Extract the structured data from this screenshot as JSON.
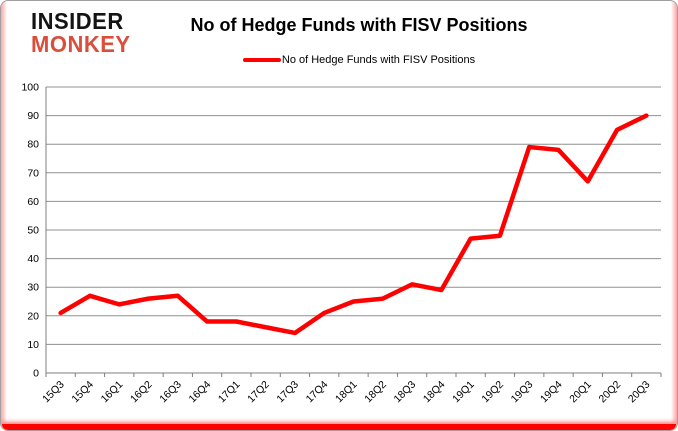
{
  "branding": {
    "logo_line1": "INSIDER",
    "logo_line2": "MONKEY",
    "logo_color_primary": "#141414",
    "logo_color_secondary": "#d94f3b"
  },
  "header": {
    "title": "No of Hedge Funds with FISV Positions"
  },
  "legend": {
    "label": "No of Hedge Funds with FISV Positions",
    "swatch_color": "#ff0000"
  },
  "chart_data": {
    "type": "line",
    "title": "No of Hedge Funds with FISV Positions",
    "xlabel": "",
    "ylabel": "",
    "categories": [
      "15Q3",
      "15Q4",
      "16Q1",
      "16Q2",
      "16Q3",
      "16Q4",
      "17Q1",
      "17Q2",
      "17Q3",
      "17Q4",
      "18Q1",
      "18Q2",
      "18Q3",
      "18Q4",
      "19Q1",
      "19Q2",
      "19Q3",
      "19Q4",
      "20Q1",
      "20Q2",
      "20Q3"
    ],
    "series": [
      {
        "name": "No of Hedge Funds with FISV Positions",
        "color": "#ff0000",
        "values": [
          21,
          27,
          24,
          26,
          27,
          18,
          18,
          16,
          14,
          21,
          25,
          26,
          31,
          29,
          47,
          48,
          79,
          78,
          67,
          85,
          90
        ]
      }
    ],
    "ylim": [
      0,
      100
    ],
    "ytick_step": 10,
    "grid": true,
    "gridline_color": "#909090",
    "axis_color": "#7f7f7f",
    "tick_label_color": "#000000",
    "legend_position": "top"
  }
}
